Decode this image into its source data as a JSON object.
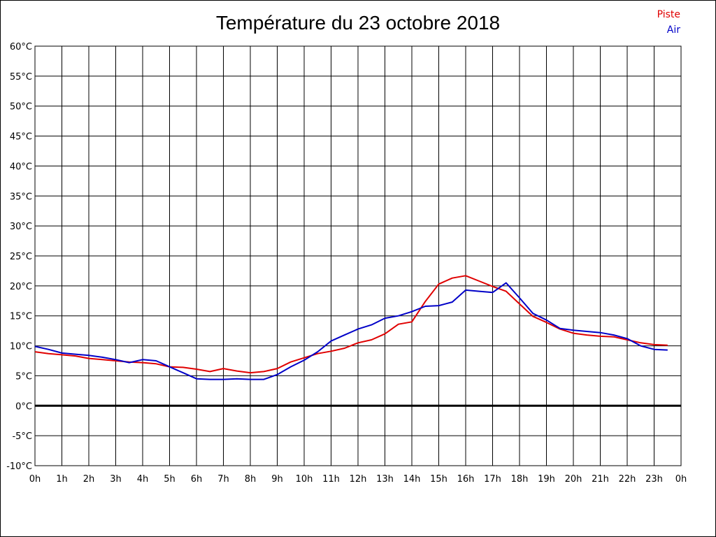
{
  "chart_data": {
    "type": "line",
    "title": "Température du 23 octobre 2018",
    "xlabel": "",
    "ylabel": "",
    "x_ticks": [
      "0h",
      "1h",
      "2h",
      "3h",
      "4h",
      "5h",
      "6h",
      "7h",
      "8h",
      "9h",
      "10h",
      "11h",
      "12h",
      "13h",
      "14h",
      "15h",
      "16h",
      "17h",
      "18h",
      "19h",
      "20h",
      "21h",
      "22h",
      "23h",
      "0h"
    ],
    "y_ticks": [
      "-10°C",
      "-5°C",
      "0°C",
      "5°C",
      "10°C",
      "15°C",
      "20°C",
      "25°C",
      "30°C",
      "35°C",
      "40°C",
      "45°C",
      "50°C",
      "55°C",
      "60°C"
    ],
    "xlim": [
      0,
      24
    ],
    "ylim": [
      -10,
      60
    ],
    "grid": true,
    "legend_position": "top-right",
    "series": [
      {
        "name": "Piste",
        "color": "#e00000",
        "x": [
          0,
          0.5,
          1,
          1.5,
          2,
          2.5,
          3,
          3.5,
          4,
          4.5,
          5,
          5.5,
          6,
          6.5,
          7,
          7.5,
          8,
          8.5,
          9,
          9.5,
          10,
          10.5,
          11,
          11.5,
          12,
          12.5,
          13,
          13.5,
          14,
          14.5,
          15,
          15.5,
          16,
          16.5,
          17,
          17.5,
          18,
          18.5,
          19,
          19.5,
          20,
          20.5,
          21,
          21.5,
          22,
          22.5,
          23,
          23.5
        ],
        "values": [
          9.0,
          8.7,
          8.5,
          8.3,
          7.9,
          7.7,
          7.5,
          7.3,
          7.2,
          7.0,
          6.5,
          6.4,
          6.1,
          5.7,
          6.2,
          5.8,
          5.5,
          5.7,
          6.2,
          7.3,
          8.0,
          8.7,
          9.1,
          9.6,
          10.5,
          11.0,
          12.0,
          13.6,
          14.0,
          17.4,
          20.3,
          21.3,
          21.7,
          20.8,
          19.9,
          19.1,
          17.0,
          14.9,
          13.9,
          12.8,
          12.1,
          11.8,
          11.6,
          11.5,
          11.0,
          10.5,
          10.2,
          10.1
        ]
      },
      {
        "name": "Air",
        "color": "#0000c8",
        "x": [
          0,
          0.5,
          1,
          1.5,
          2,
          2.5,
          3,
          3.5,
          4,
          4.5,
          5,
          5.5,
          6,
          6.5,
          7,
          7.5,
          8,
          8.5,
          9,
          9.5,
          10,
          10.5,
          11,
          11.5,
          12,
          12.5,
          13,
          13.5,
          14,
          14.5,
          15,
          15.5,
          16,
          16.5,
          17,
          17.5,
          18,
          18.5,
          19,
          19.5,
          20,
          20.5,
          21,
          21.5,
          22,
          22.5,
          23,
          23.5
        ],
        "values": [
          9.9,
          9.4,
          8.8,
          8.6,
          8.4,
          8.1,
          7.7,
          7.2,
          7.7,
          7.5,
          6.5,
          5.5,
          4.5,
          4.4,
          4.4,
          4.5,
          4.4,
          4.4,
          5.2,
          6.5,
          7.6,
          9.0,
          10.8,
          11.8,
          12.8,
          13.5,
          14.6,
          15.0,
          15.7,
          16.6,
          16.7,
          17.3,
          19.3,
          19.1,
          18.9,
          20.5,
          18.0,
          15.4,
          14.3,
          12.9,
          12.6,
          12.4,
          12.2,
          11.8,
          11.2,
          10.0,
          9.4,
          9.3
        ]
      }
    ]
  }
}
